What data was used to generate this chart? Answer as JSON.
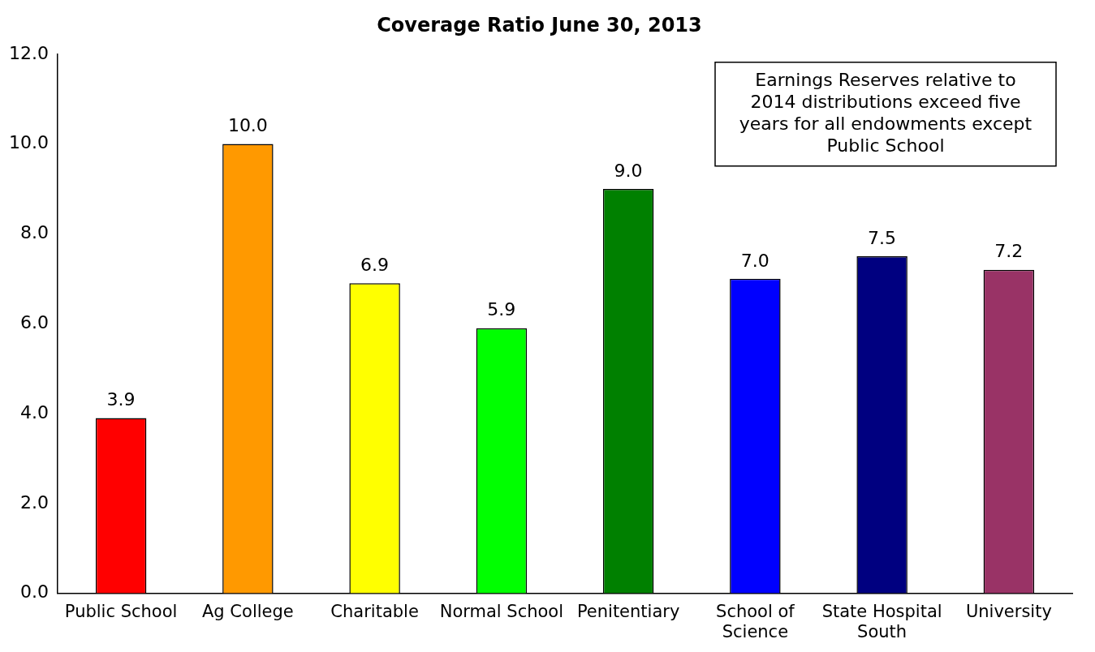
{
  "chart_data": {
    "type": "bar",
    "title": "Coverage Ratio June 30, 2013",
    "categories": [
      "Public School",
      "Ag College",
      "Charitable",
      "Normal School",
      "Penitentiary",
      "School of Science",
      "State Hospital South",
      "University"
    ],
    "values": [
      3.9,
      10.0,
      6.9,
      5.9,
      9.0,
      7.0,
      7.5,
      7.2
    ],
    "value_labels": [
      "3.9",
      "10.0",
      "6.9",
      "5.9",
      "9.0",
      "7.0",
      "7.5",
      "7.2"
    ],
    "colors": [
      "#ff0000",
      "#ff9900",
      "#ffff00",
      "#00ff00",
      "#008000",
      "#0000ff",
      "#000080",
      "#993366"
    ],
    "ylim": [
      0,
      12
    ],
    "yticks": [
      {
        "value": 0,
        "label": "0.0"
      },
      {
        "value": 2,
        "label": "2.0"
      },
      {
        "value": 4,
        "label": "4.0"
      },
      {
        "value": 6,
        "label": "6.0"
      },
      {
        "value": 8,
        "label": "8.0"
      },
      {
        "value": 10,
        "label": "10.0"
      },
      {
        "value": 12,
        "label": "12.0"
      }
    ],
    "grid": false,
    "legend": false,
    "annotations": [
      "Earnings Reserves relative to 2014 distributions exceed five years for all endowments except Public School"
    ]
  }
}
